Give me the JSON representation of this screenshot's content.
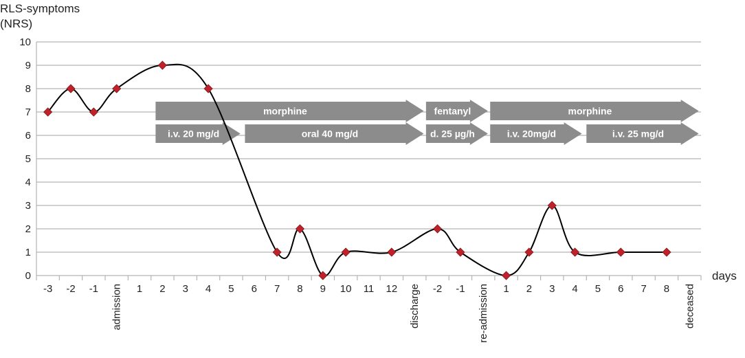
{
  "chart_data": {
    "type": "line",
    "ylabel": [
      "RLS-symptoms",
      "(NRS)"
    ],
    "xlabel": "days",
    "ylim": [
      0,
      10
    ],
    "yticks": [
      0,
      1,
      2,
      3,
      4,
      5,
      6,
      7,
      8,
      9,
      10
    ],
    "grid": true,
    "categories": [
      "-3",
      "-2",
      "-1",
      "admission",
      "1",
      "2",
      "3",
      "4",
      "5",
      "6",
      "7",
      "8",
      "9",
      "10",
      "11",
      "12",
      "discharge",
      "-2",
      "-1",
      "re-admission",
      "1",
      "2",
      "3",
      "4",
      "5",
      "6",
      "7",
      "8",
      "deceased"
    ],
    "series": [
      {
        "color": "#c0212b",
        "points": [
          {
            "x": "-3",
            "y": 7
          },
          {
            "x": "-2",
            "y": 8
          },
          {
            "x": "-1",
            "y": 7
          },
          {
            "x": "admission",
            "y": 8
          },
          {
            "x": "2",
            "y": 9
          },
          {
            "x": "4",
            "y": 8
          },
          {
            "x": "7",
            "y": 1
          },
          {
            "x": "8",
            "y": 2
          },
          {
            "x": "9",
            "y": 0
          },
          {
            "x": "10",
            "y": 1
          },
          {
            "x": "12",
            "y": 1
          },
          {
            "x": "discharge+1",
            "y": 2
          },
          {
            "x": "-1",
            "y": 1
          },
          {
            "x": "1 (after re-admission)",
            "y": 0
          },
          {
            "x": "2 (after re-admission)",
            "y": 1
          },
          {
            "x": "3 (after re-admission)",
            "y": 3
          },
          {
            "x": "4 (after re-admission)",
            "y": 1
          },
          {
            "x": "6 (after re-admission)",
            "y": 1
          },
          {
            "x": "8 (after re-admission)",
            "y": 1
          }
        ]
      }
    ],
    "annotations": [
      {
        "label": "morphine",
        "row": 1,
        "from_index": 5.2,
        "to_index": 16.9
      },
      {
        "label": "fentanyl",
        "row": 1,
        "from_index": 17.0,
        "to_index": 19.7
      },
      {
        "label": "morphine",
        "row": 1,
        "from_index": 19.8,
        "to_index": 28.9
      },
      {
        "label": "i.v. 20 mg/d",
        "row": 2,
        "from_index": 5.2,
        "to_index": 8.9
      },
      {
        "label": "oral 40 mg/d",
        "row": 2,
        "from_index": 9.1,
        "to_index": 16.9
      },
      {
        "label": "d. 25 µg/h",
        "row": 2,
        "from_index": 17.0,
        "to_index": 19.7
      },
      {
        "label": "i.v. 20mg/d",
        "row": 2,
        "from_index": 19.8,
        "to_index": 23.8
      },
      {
        "label": "i.v. 25 mg/d",
        "row": 2,
        "from_index": 24.0,
        "to_index": 28.9
      }
    ],
    "arrow_color": "#8c8c8c",
    "line_color": "#000000",
    "grid_color": "#b3b3b3"
  }
}
